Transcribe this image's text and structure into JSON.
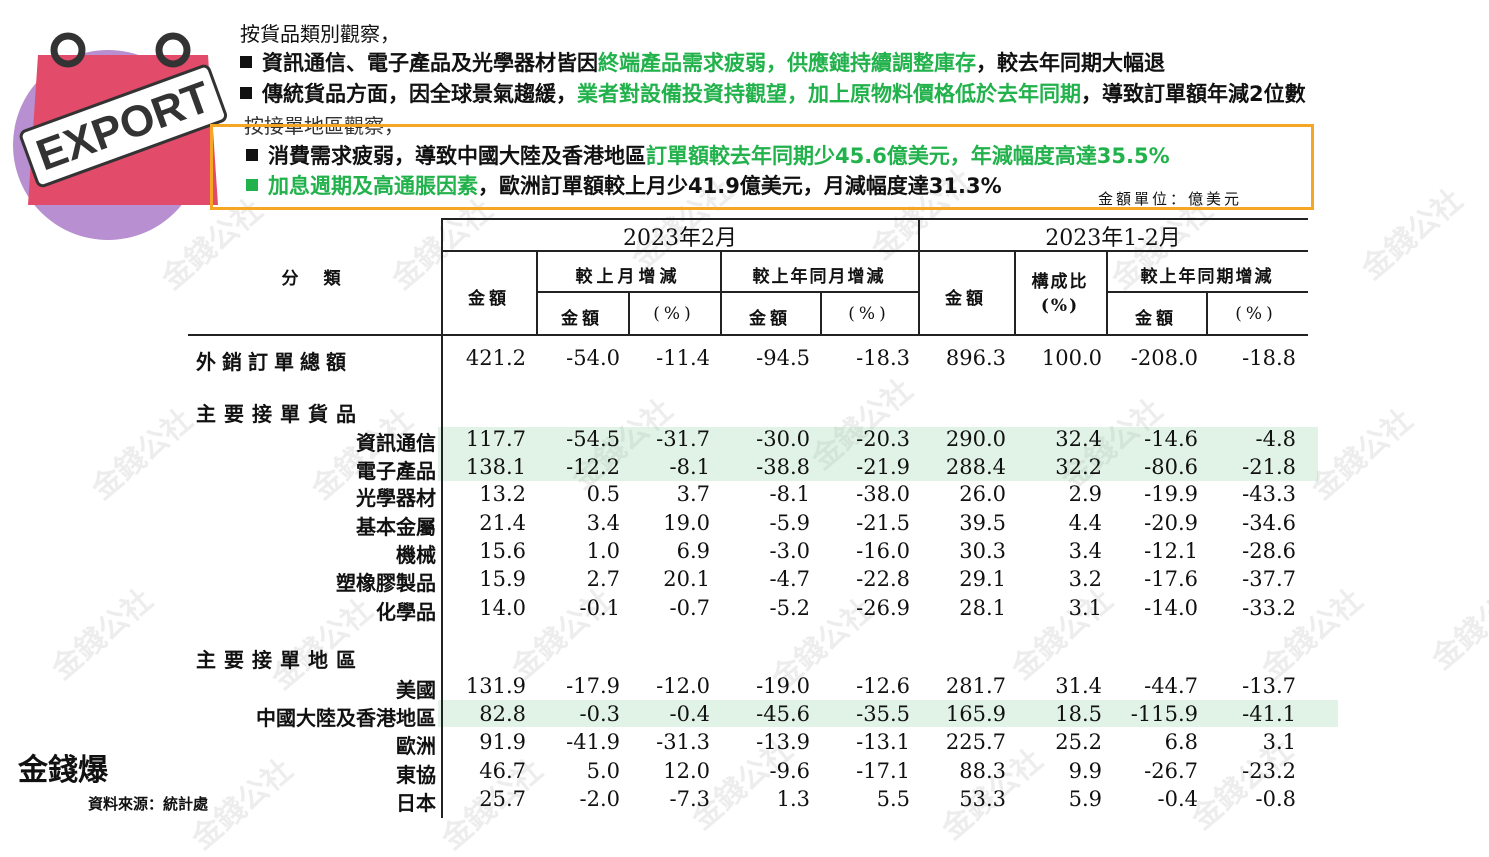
{
  "logo": {
    "label": "EXPORT",
    "icon": "shopping-bag-icon"
  },
  "intro": {
    "goods_heading": "按貨品類別觀察，",
    "region_heading": "按接單地區觀察，"
  },
  "bullets": [
    {
      "parts": [
        {
          "text": "資訊通信、電子產品及光學器材皆因",
          "green": false
        },
        {
          "text": "終端產品需求疲弱，供應鏈持續調整庫存",
          "green": true
        },
        {
          "text": "，較去年同期大幅退",
          "green": false
        }
      ]
    },
    {
      "parts": [
        {
          "text": "傳統貨品方面，因全球景氣趨緩，",
          "green": false
        },
        {
          "text": "業者對設備投資持觀望，加上原物料價格低於去年同期",
          "green": true
        },
        {
          "text": "，導致訂單額年減2位數",
          "green": false
        }
      ]
    },
    {
      "parts": [
        {
          "text": "消費需求疲弱，導致中國大陸及香港地區",
          "green": false
        },
        {
          "text": "訂單額較去年同期少45.6億美元，年減幅度高達35.5%",
          "green": true
        }
      ]
    },
    {
      "parts": [
        {
          "text": "加息週期及高通脹因素",
          "green": true
        },
        {
          "text": "，歐洲訂單額較上月少41.9億美元，月減幅度達31.3%",
          "green": false
        }
      ]
    }
  ],
  "unit_label": "金額單位：億美元",
  "table": {
    "header": {
      "category": "分　類",
      "period1": "2023年2月",
      "period2": "2023年1-2月",
      "amount": "金額",
      "mom": "較上月增減",
      "yoy": "較上年同月增減",
      "share": "構成比(%)",
      "ytd": "較上年同期增減",
      "sub_amount": "金額",
      "sub_pct": "(%)"
    },
    "total": {
      "label": "外銷訂單總額",
      "values": [
        "421.2",
        "-54.0",
        "-11.4",
        "-94.5",
        "-18.3",
        "896.3",
        "100.0",
        "-208.0",
        "-18.8"
      ]
    },
    "goods_section": "主要接單貨品",
    "goods": [
      {
        "label": "資訊通信",
        "values": [
          "117.7",
          "-54.5",
          "-31.7",
          "-30.0",
          "-20.3",
          "290.0",
          "32.4",
          "-14.6",
          "-4.8"
        ]
      },
      {
        "label": "電子產品",
        "values": [
          "138.1",
          "-12.2",
          "-8.1",
          "-38.8",
          "-21.9",
          "288.4",
          "32.2",
          "-80.6",
          "-21.8"
        ]
      },
      {
        "label": "光學器材",
        "values": [
          "13.2",
          "0.5",
          "3.7",
          "-8.1",
          "-38.0",
          "26.0",
          "2.9",
          "-19.9",
          "-43.3"
        ]
      },
      {
        "label": "基本金屬",
        "values": [
          "21.4",
          "3.4",
          "19.0",
          "-5.9",
          "-21.5",
          "39.5",
          "4.4",
          "-20.9",
          "-34.6"
        ]
      },
      {
        "label": "機械",
        "values": [
          "15.6",
          "1.0",
          "6.9",
          "-3.0",
          "-16.0",
          "30.3",
          "3.4",
          "-12.1",
          "-28.6"
        ]
      },
      {
        "label": "塑橡膠製品",
        "values": [
          "15.9",
          "2.7",
          "20.1",
          "-4.7",
          "-22.8",
          "29.1",
          "3.2",
          "-17.6",
          "-37.7"
        ]
      },
      {
        "label": "化學品",
        "values": [
          "14.0",
          "-0.1",
          "-0.7",
          "-5.2",
          "-26.9",
          "28.1",
          "3.1",
          "-14.0",
          "-33.2"
        ]
      }
    ],
    "region_section": "主要接單地區",
    "regions": [
      {
        "label": "美國",
        "values": [
          "131.9",
          "-17.9",
          "-12.0",
          "-19.0",
          "-12.6",
          "281.7",
          "31.4",
          "-44.7",
          "-13.7"
        ]
      },
      {
        "label": "中國大陸及香港地區",
        "values": [
          "82.8",
          "-0.3",
          "-0.4",
          "-45.6",
          "-35.5",
          "165.9",
          "18.5",
          "-115.9",
          "-41.1"
        ]
      },
      {
        "label": "歐洲",
        "values": [
          "91.9",
          "-41.9",
          "-31.3",
          "-13.9",
          "-13.1",
          "225.7",
          "25.2",
          "6.8",
          "3.1"
        ]
      },
      {
        "label": "東協",
        "values": [
          "46.7",
          "5.0",
          "12.0",
          "-9.6",
          "-17.1",
          "88.3",
          "9.9",
          "-26.7",
          "-23.2"
        ]
      },
      {
        "label": "日本",
        "values": [
          "25.7",
          "-2.0",
          "-7.3",
          "1.3",
          "5.5",
          "53.3",
          "5.9",
          "-0.4",
          "-0.8"
        ]
      }
    ]
  },
  "source": "資料來源：統計處",
  "brand": "金錢爆",
  "watermark": "金錢公社",
  "colors": {
    "accent_green": "#22b24c",
    "highlight_border": "#f5a623",
    "band": "#d9f0df"
  }
}
